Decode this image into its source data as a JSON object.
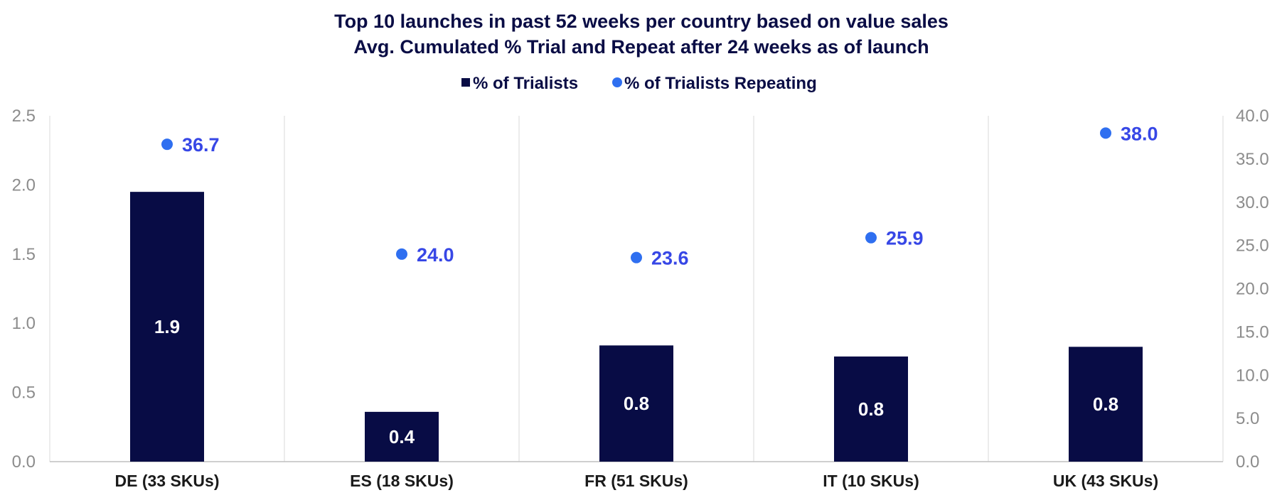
{
  "chart_data": {
    "type": "bar",
    "title": "Top 10 launches in past 52 weeks per country based on value sales",
    "subtitle": "Avg. Cumulated % Trial and Repeat after 24 weeks as of launch",
    "categories": [
      "DE (33 SKUs)",
      "ES (18 SKUs)",
      "FR (51 SKUs)",
      "IT (10 SKUs)",
      "UK (43 SKUs)"
    ],
    "series": [
      {
        "name": "% of Trialists",
        "type": "bar",
        "axis": "left",
        "values": [
          1.95,
          0.36,
          0.84,
          0.76,
          0.83
        ],
        "labels": [
          "1.9",
          "0.4",
          "0.8",
          "0.8",
          "0.8"
        ],
        "color": "#080c45"
      },
      {
        "name": "% of Trialists Repeating",
        "type": "scatter",
        "axis": "right",
        "values": [
          36.7,
          24.0,
          23.6,
          25.9,
          38.0
        ],
        "labels": [
          "36.7",
          "24.0",
          "23.6",
          "25.9",
          "38.0"
        ],
        "color": "#2f6ff0",
        "label_color": "#3747e6"
      }
    ],
    "y_left": {
      "min": 0,
      "max": 2.5,
      "ticks": [
        "0.0",
        "0.5",
        "1.0",
        "1.5",
        "2.0",
        "2.5"
      ]
    },
    "y_right": {
      "min": 0,
      "max": 40,
      "ticks": [
        "0.0",
        "5.0",
        "10.0",
        "15.0",
        "20.0",
        "25.0",
        "30.0",
        "35.0",
        "40.0"
      ]
    },
    "legend_position": "top-center",
    "grid": "vertical category separators"
  }
}
